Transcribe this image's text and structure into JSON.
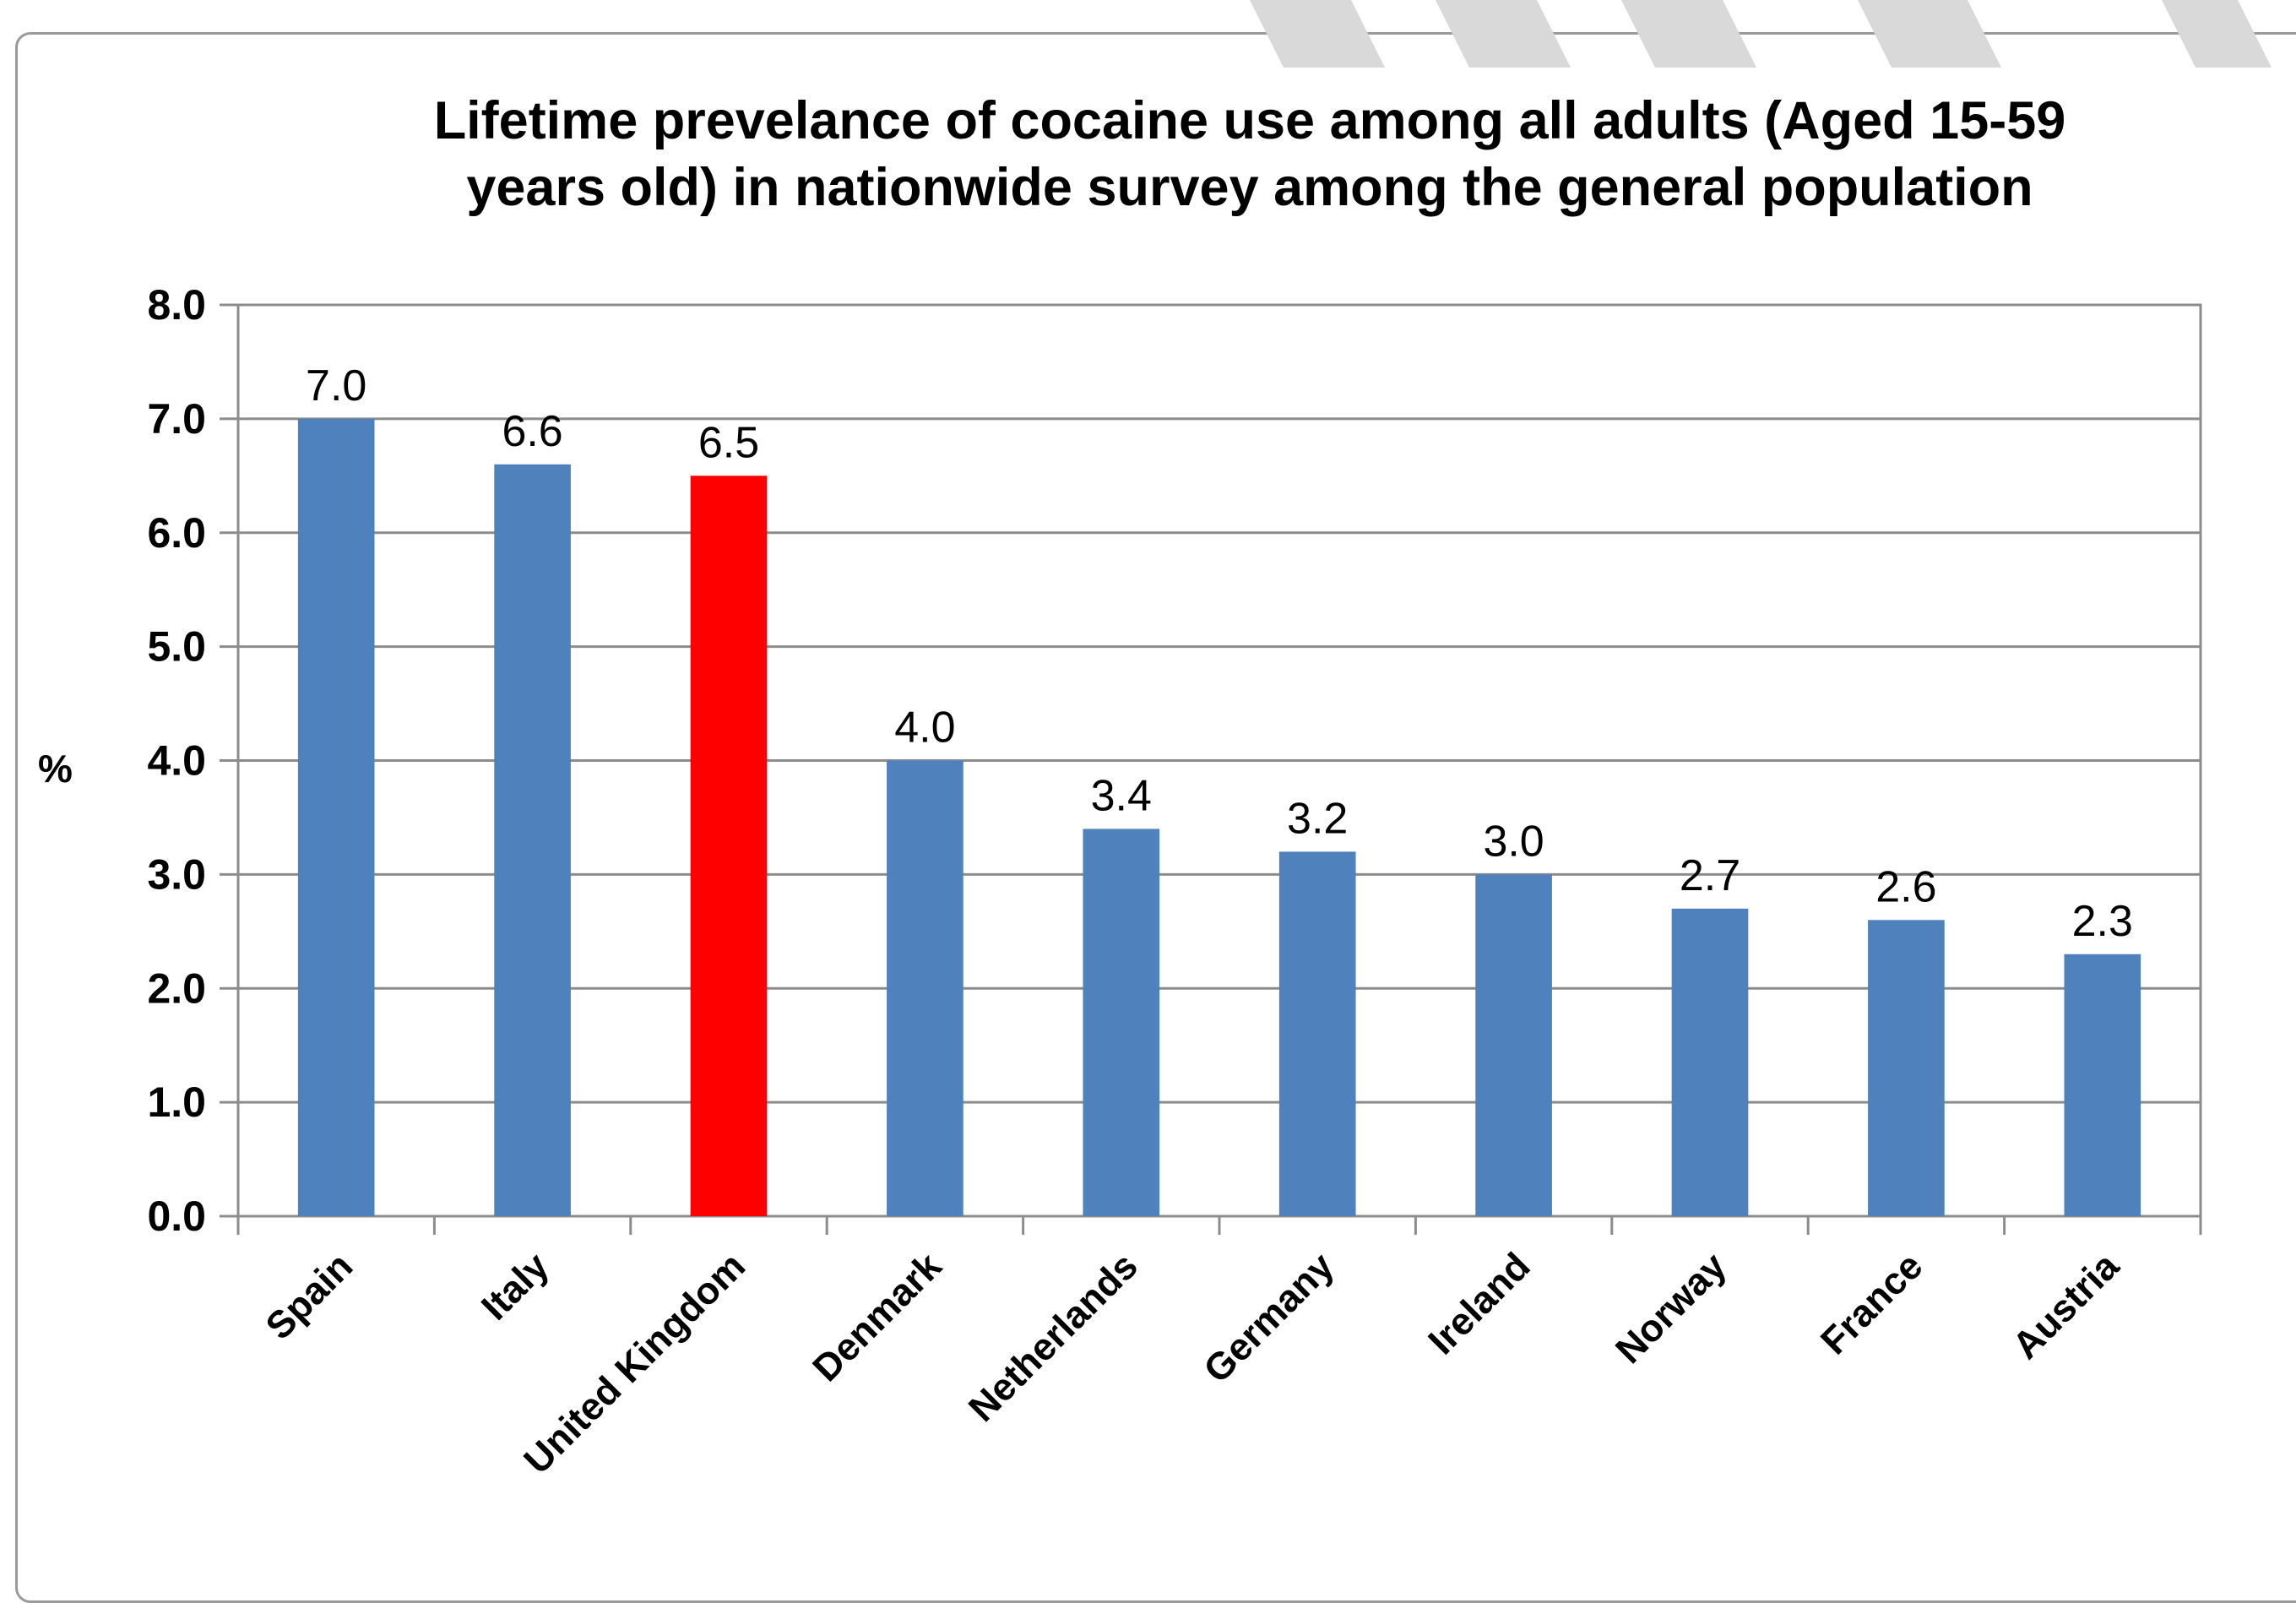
{
  "chart_data": {
    "type": "bar",
    "title": "Lifetime prevelance of  cocaine use among all adults (Aged 15-59 years old) in nationwide survey among the general population",
    "title_lines": [
      "Lifetime prevelance of  cocaine use among all adults (Aged 15-59",
      "years old) in nationwide survey among the general population"
    ],
    "xlabel": "",
    "ylabel": "%",
    "ylim": [
      0,
      8
    ],
    "yticks": [
      "0.0",
      "1.0",
      "2.0",
      "3.0",
      "4.0",
      "5.0",
      "6.0",
      "7.0",
      "8.0"
    ],
    "grid": true,
    "legend": "none",
    "categories": [
      "Spain",
      "Italy",
      "United Kingdom",
      "Denmark",
      "Netherlands",
      "Germany",
      "Ireland",
      "Norway",
      "France",
      "Austria"
    ],
    "values": [
      7.0,
      6.6,
      6.5,
      4.0,
      3.4,
      3.2,
      3.0,
      2.7,
      2.6,
      2.3
    ],
    "value_labels": [
      "7.0",
      "6.6",
      "6.5",
      "4.0",
      "3.4",
      "3.2",
      "3.0",
      "2.7",
      "2.6",
      "2.3"
    ],
    "bar_colors": [
      "#4f81bd",
      "#4f81bd",
      "#ff0000",
      "#4f81bd",
      "#4f81bd",
      "#4f81bd",
      "#4f81bd",
      "#4f81bd",
      "#4f81bd",
      "#4f81bd"
    ],
    "gridline_color": "#8c8c8c"
  }
}
